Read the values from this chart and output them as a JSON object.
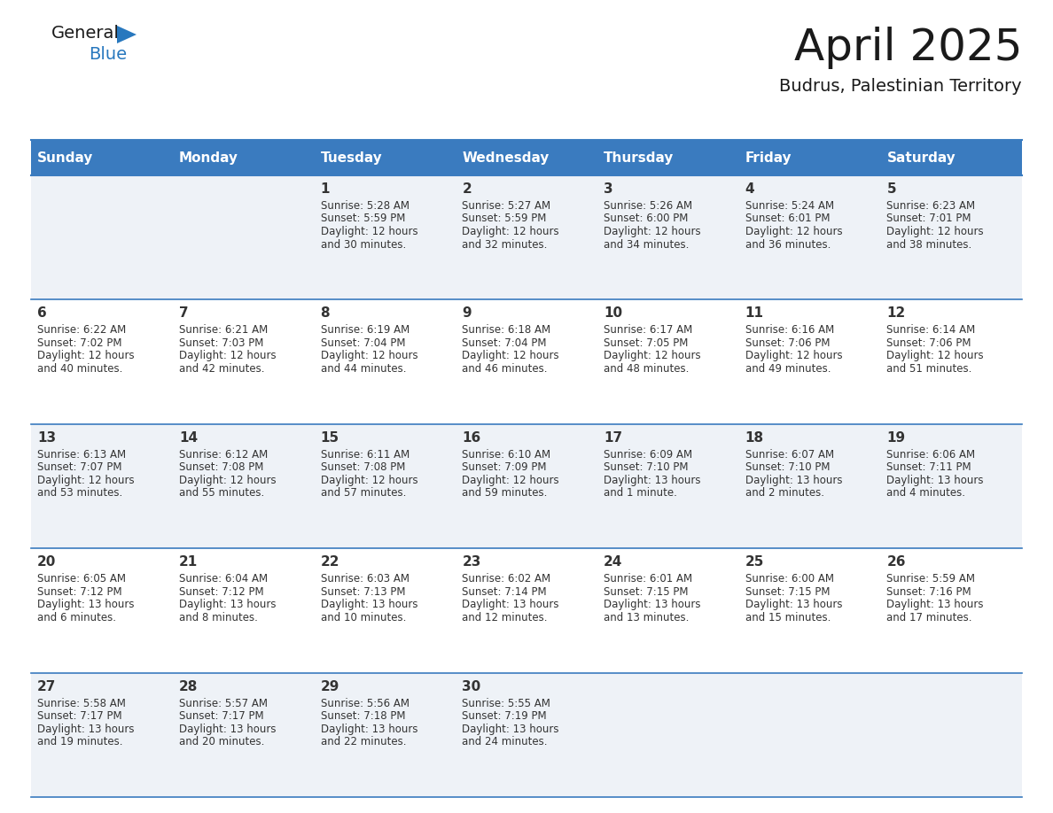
{
  "title": "April 2025",
  "subtitle": "Budrus, Palestinian Territory",
  "header_bg_color": "#3a7bbf",
  "header_text_color": "#ffffff",
  "row_bg_even": "#eef2f7",
  "row_bg_odd": "#ffffff",
  "day_names": [
    "Sunday",
    "Monday",
    "Tuesday",
    "Wednesday",
    "Thursday",
    "Friday",
    "Saturday"
  ],
  "grid_line_color": "#3a7bbf",
  "day_num_color": "#333333",
  "text_color": "#333333",
  "weeks": [
    [
      {
        "day": "",
        "sunrise": "",
        "sunset": "",
        "daylight": ""
      },
      {
        "day": "",
        "sunrise": "",
        "sunset": "",
        "daylight": ""
      },
      {
        "day": "1",
        "sunrise": "5:28 AM",
        "sunset": "5:59 PM",
        "daylight": "12 hours\nand 30 minutes."
      },
      {
        "day": "2",
        "sunrise": "5:27 AM",
        "sunset": "5:59 PM",
        "daylight": "12 hours\nand 32 minutes."
      },
      {
        "day": "3",
        "sunrise": "5:26 AM",
        "sunset": "6:00 PM",
        "daylight": "12 hours\nand 34 minutes."
      },
      {
        "day": "4",
        "sunrise": "5:24 AM",
        "sunset": "6:01 PM",
        "daylight": "12 hours\nand 36 minutes."
      },
      {
        "day": "5",
        "sunrise": "6:23 AM",
        "sunset": "7:01 PM",
        "daylight": "12 hours\nand 38 minutes."
      }
    ],
    [
      {
        "day": "6",
        "sunrise": "6:22 AM",
        "sunset": "7:02 PM",
        "daylight": "12 hours\nand 40 minutes."
      },
      {
        "day": "7",
        "sunrise": "6:21 AM",
        "sunset": "7:03 PM",
        "daylight": "12 hours\nand 42 minutes."
      },
      {
        "day": "8",
        "sunrise": "6:19 AM",
        "sunset": "7:04 PM",
        "daylight": "12 hours\nand 44 minutes."
      },
      {
        "day": "9",
        "sunrise": "6:18 AM",
        "sunset": "7:04 PM",
        "daylight": "12 hours\nand 46 minutes."
      },
      {
        "day": "10",
        "sunrise": "6:17 AM",
        "sunset": "7:05 PM",
        "daylight": "12 hours\nand 48 minutes."
      },
      {
        "day": "11",
        "sunrise": "6:16 AM",
        "sunset": "7:06 PM",
        "daylight": "12 hours\nand 49 minutes."
      },
      {
        "day": "12",
        "sunrise": "6:14 AM",
        "sunset": "7:06 PM",
        "daylight": "12 hours\nand 51 minutes."
      }
    ],
    [
      {
        "day": "13",
        "sunrise": "6:13 AM",
        "sunset": "7:07 PM",
        "daylight": "12 hours\nand 53 minutes."
      },
      {
        "day": "14",
        "sunrise": "6:12 AM",
        "sunset": "7:08 PM",
        "daylight": "12 hours\nand 55 minutes."
      },
      {
        "day": "15",
        "sunrise": "6:11 AM",
        "sunset": "7:08 PM",
        "daylight": "12 hours\nand 57 minutes."
      },
      {
        "day": "16",
        "sunrise": "6:10 AM",
        "sunset": "7:09 PM",
        "daylight": "12 hours\nand 59 minutes."
      },
      {
        "day": "17",
        "sunrise": "6:09 AM",
        "sunset": "7:10 PM",
        "daylight": "13 hours\nand 1 minute."
      },
      {
        "day": "18",
        "sunrise": "6:07 AM",
        "sunset": "7:10 PM",
        "daylight": "13 hours\nand 2 minutes."
      },
      {
        "day": "19",
        "sunrise": "6:06 AM",
        "sunset": "7:11 PM",
        "daylight": "13 hours\nand 4 minutes."
      }
    ],
    [
      {
        "day": "20",
        "sunrise": "6:05 AM",
        "sunset": "7:12 PM",
        "daylight": "13 hours\nand 6 minutes."
      },
      {
        "day": "21",
        "sunrise": "6:04 AM",
        "sunset": "7:12 PM",
        "daylight": "13 hours\nand 8 minutes."
      },
      {
        "day": "22",
        "sunrise": "6:03 AM",
        "sunset": "7:13 PM",
        "daylight": "13 hours\nand 10 minutes."
      },
      {
        "day": "23",
        "sunrise": "6:02 AM",
        "sunset": "7:14 PM",
        "daylight": "13 hours\nand 12 minutes."
      },
      {
        "day": "24",
        "sunrise": "6:01 AM",
        "sunset": "7:15 PM",
        "daylight": "13 hours\nand 13 minutes."
      },
      {
        "day": "25",
        "sunrise": "6:00 AM",
        "sunset": "7:15 PM",
        "daylight": "13 hours\nand 15 minutes."
      },
      {
        "day": "26",
        "sunrise": "5:59 AM",
        "sunset": "7:16 PM",
        "daylight": "13 hours\nand 17 minutes."
      }
    ],
    [
      {
        "day": "27",
        "sunrise": "5:58 AM",
        "sunset": "7:17 PM",
        "daylight": "13 hours\nand 19 minutes."
      },
      {
        "day": "28",
        "sunrise": "5:57 AM",
        "sunset": "7:17 PM",
        "daylight": "13 hours\nand 20 minutes."
      },
      {
        "day": "29",
        "sunrise": "5:56 AM",
        "sunset": "7:18 PM",
        "daylight": "13 hours\nand 22 minutes."
      },
      {
        "day": "30",
        "sunrise": "5:55 AM",
        "sunset": "7:19 PM",
        "daylight": "13 hours\nand 24 minutes."
      },
      {
        "day": "",
        "sunrise": "",
        "sunset": "",
        "daylight": ""
      },
      {
        "day": "",
        "sunrise": "",
        "sunset": "",
        "daylight": ""
      },
      {
        "day": "",
        "sunrise": "",
        "sunset": "",
        "daylight": ""
      }
    ]
  ],
  "logo_text_general": "General",
  "logo_text_blue": "Blue",
  "logo_color_general": "#1a1a1a",
  "logo_color_blue": "#2878be",
  "logo_triangle_color": "#2878be",
  "title_fontsize": 36,
  "subtitle_fontsize": 14,
  "header_fontsize": 11,
  "day_num_fontsize": 11,
  "cell_text_fontsize": 8.5
}
